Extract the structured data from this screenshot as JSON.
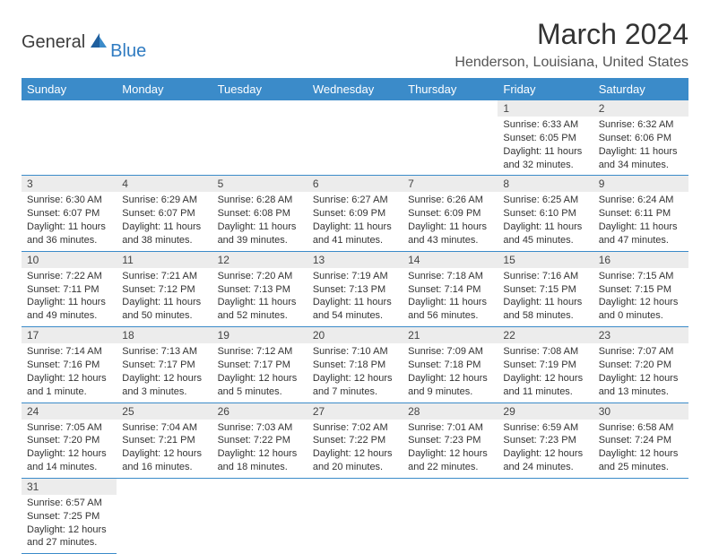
{
  "brand": {
    "part1": "General",
    "part2": "Blue"
  },
  "title": "March 2024",
  "location": "Henderson, Louisiana, United States",
  "colors": {
    "header_bg": "#3b8bc9",
    "daynum_bg": "#ececec",
    "border": "#3b8bc9"
  },
  "weekdays": [
    "Sunday",
    "Monday",
    "Tuesday",
    "Wednesday",
    "Thursday",
    "Friday",
    "Saturday"
  ],
  "weeks": [
    [
      null,
      null,
      null,
      null,
      null,
      {
        "n": "1",
        "sr": "Sunrise: 6:33 AM",
        "ss": "Sunset: 6:05 PM",
        "dl": "Daylight: 11 hours and 32 minutes."
      },
      {
        "n": "2",
        "sr": "Sunrise: 6:32 AM",
        "ss": "Sunset: 6:06 PM",
        "dl": "Daylight: 11 hours and 34 minutes."
      }
    ],
    [
      {
        "n": "3",
        "sr": "Sunrise: 6:30 AM",
        "ss": "Sunset: 6:07 PM",
        "dl": "Daylight: 11 hours and 36 minutes."
      },
      {
        "n": "4",
        "sr": "Sunrise: 6:29 AM",
        "ss": "Sunset: 6:07 PM",
        "dl": "Daylight: 11 hours and 38 minutes."
      },
      {
        "n": "5",
        "sr": "Sunrise: 6:28 AM",
        "ss": "Sunset: 6:08 PM",
        "dl": "Daylight: 11 hours and 39 minutes."
      },
      {
        "n": "6",
        "sr": "Sunrise: 6:27 AM",
        "ss": "Sunset: 6:09 PM",
        "dl": "Daylight: 11 hours and 41 minutes."
      },
      {
        "n": "7",
        "sr": "Sunrise: 6:26 AM",
        "ss": "Sunset: 6:09 PM",
        "dl": "Daylight: 11 hours and 43 minutes."
      },
      {
        "n": "8",
        "sr": "Sunrise: 6:25 AM",
        "ss": "Sunset: 6:10 PM",
        "dl": "Daylight: 11 hours and 45 minutes."
      },
      {
        "n": "9",
        "sr": "Sunrise: 6:24 AM",
        "ss": "Sunset: 6:11 PM",
        "dl": "Daylight: 11 hours and 47 minutes."
      }
    ],
    [
      {
        "n": "10",
        "sr": "Sunrise: 7:22 AM",
        "ss": "Sunset: 7:11 PM",
        "dl": "Daylight: 11 hours and 49 minutes."
      },
      {
        "n": "11",
        "sr": "Sunrise: 7:21 AM",
        "ss": "Sunset: 7:12 PM",
        "dl": "Daylight: 11 hours and 50 minutes."
      },
      {
        "n": "12",
        "sr": "Sunrise: 7:20 AM",
        "ss": "Sunset: 7:13 PM",
        "dl": "Daylight: 11 hours and 52 minutes."
      },
      {
        "n": "13",
        "sr": "Sunrise: 7:19 AM",
        "ss": "Sunset: 7:13 PM",
        "dl": "Daylight: 11 hours and 54 minutes."
      },
      {
        "n": "14",
        "sr": "Sunrise: 7:18 AM",
        "ss": "Sunset: 7:14 PM",
        "dl": "Daylight: 11 hours and 56 minutes."
      },
      {
        "n": "15",
        "sr": "Sunrise: 7:16 AM",
        "ss": "Sunset: 7:15 PM",
        "dl": "Daylight: 11 hours and 58 minutes."
      },
      {
        "n": "16",
        "sr": "Sunrise: 7:15 AM",
        "ss": "Sunset: 7:15 PM",
        "dl": "Daylight: 12 hours and 0 minutes."
      }
    ],
    [
      {
        "n": "17",
        "sr": "Sunrise: 7:14 AM",
        "ss": "Sunset: 7:16 PM",
        "dl": "Daylight: 12 hours and 1 minute."
      },
      {
        "n": "18",
        "sr": "Sunrise: 7:13 AM",
        "ss": "Sunset: 7:17 PM",
        "dl": "Daylight: 12 hours and 3 minutes."
      },
      {
        "n": "19",
        "sr": "Sunrise: 7:12 AM",
        "ss": "Sunset: 7:17 PM",
        "dl": "Daylight: 12 hours and 5 minutes."
      },
      {
        "n": "20",
        "sr": "Sunrise: 7:10 AM",
        "ss": "Sunset: 7:18 PM",
        "dl": "Daylight: 12 hours and 7 minutes."
      },
      {
        "n": "21",
        "sr": "Sunrise: 7:09 AM",
        "ss": "Sunset: 7:18 PM",
        "dl": "Daylight: 12 hours and 9 minutes."
      },
      {
        "n": "22",
        "sr": "Sunrise: 7:08 AM",
        "ss": "Sunset: 7:19 PM",
        "dl": "Daylight: 12 hours and 11 minutes."
      },
      {
        "n": "23",
        "sr": "Sunrise: 7:07 AM",
        "ss": "Sunset: 7:20 PM",
        "dl": "Daylight: 12 hours and 13 minutes."
      }
    ],
    [
      {
        "n": "24",
        "sr": "Sunrise: 7:05 AM",
        "ss": "Sunset: 7:20 PM",
        "dl": "Daylight: 12 hours and 14 minutes."
      },
      {
        "n": "25",
        "sr": "Sunrise: 7:04 AM",
        "ss": "Sunset: 7:21 PM",
        "dl": "Daylight: 12 hours and 16 minutes."
      },
      {
        "n": "26",
        "sr": "Sunrise: 7:03 AM",
        "ss": "Sunset: 7:22 PM",
        "dl": "Daylight: 12 hours and 18 minutes."
      },
      {
        "n": "27",
        "sr": "Sunrise: 7:02 AM",
        "ss": "Sunset: 7:22 PM",
        "dl": "Daylight: 12 hours and 20 minutes."
      },
      {
        "n": "28",
        "sr": "Sunrise: 7:01 AM",
        "ss": "Sunset: 7:23 PM",
        "dl": "Daylight: 12 hours and 22 minutes."
      },
      {
        "n": "29",
        "sr": "Sunrise: 6:59 AM",
        "ss": "Sunset: 7:23 PM",
        "dl": "Daylight: 12 hours and 24 minutes."
      },
      {
        "n": "30",
        "sr": "Sunrise: 6:58 AM",
        "ss": "Sunset: 7:24 PM",
        "dl": "Daylight: 12 hours and 25 minutes."
      }
    ],
    [
      {
        "n": "31",
        "sr": "Sunrise: 6:57 AM",
        "ss": "Sunset: 7:25 PM",
        "dl": "Daylight: 12 hours and 27 minutes."
      },
      null,
      null,
      null,
      null,
      null,
      null
    ]
  ]
}
